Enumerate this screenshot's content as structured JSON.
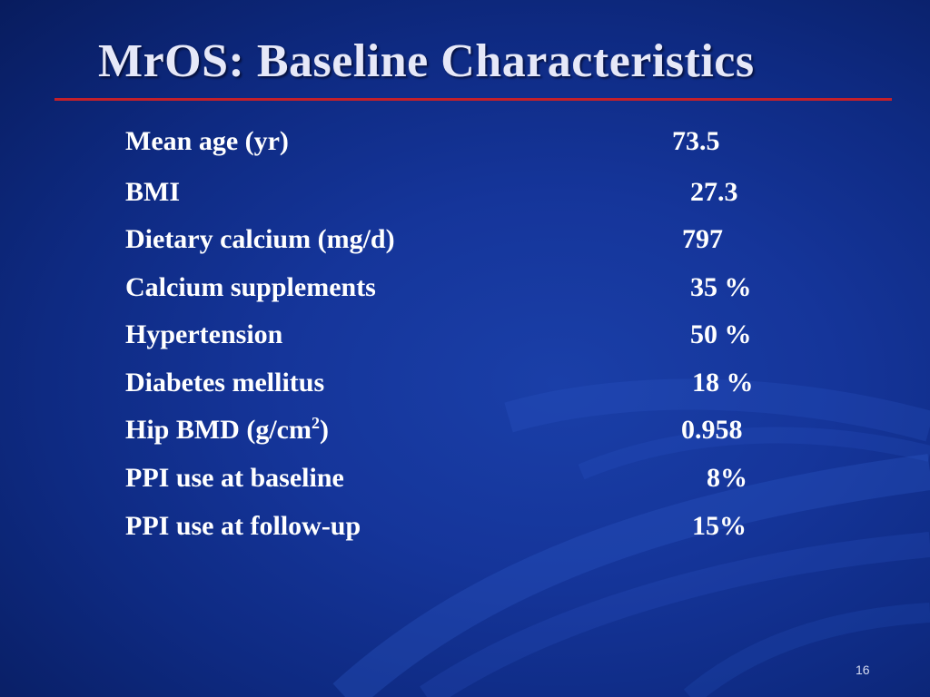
{
  "slide": {
    "title": "MrOS: Baseline Characteristics",
    "page_number": "16",
    "accent_rule_color": "#c4202a",
    "background_color": "#15359a"
  },
  "rows": [
    {
      "label": "Mean age (yr)",
      "value": "73.5"
    },
    {
      "label": "BMI",
      "value": "27.3"
    },
    {
      "label": "Dietary calcium (mg/d)",
      "value": "797"
    },
    {
      "label": "Calcium supplements",
      "value": "35 %"
    },
    {
      "label": "Hypertension",
      "value": "50 %"
    },
    {
      "label": "Diabetes mellitus",
      "value": "18 %"
    },
    {
      "label_pre": "Hip BMD (g/cm",
      "label_sup": "2",
      "label_post": ")",
      "value": "0.958"
    },
    {
      "label": "PPI use at baseline",
      "value": "8%"
    },
    {
      "label": "PPI use at follow-up",
      "value": "15%"
    }
  ]
}
